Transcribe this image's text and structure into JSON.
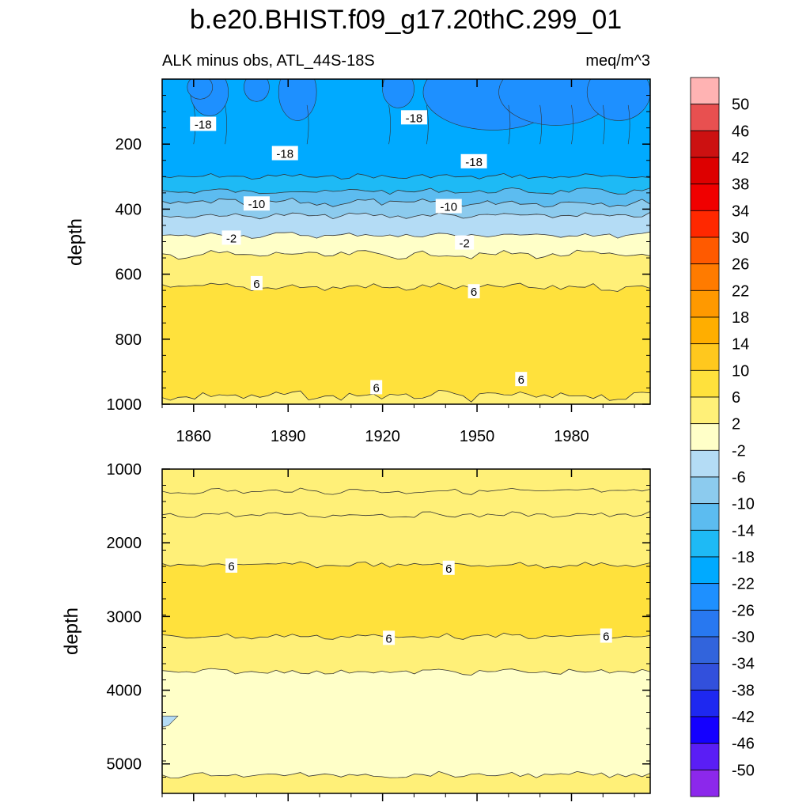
{
  "title": "b.e20.BHIST.f09_g17.20thC.299_01",
  "subtitle_left": "ALK minus obs, ATL_44S-18S",
  "subtitle_right": "meq/m^3",
  "chart_data": [
    {
      "type": "contour",
      "panel": "upper",
      "ylabel": "depth",
      "xlim": [
        1850,
        2005
      ],
      "ylim": [
        1000,
        0
      ],
      "y_ticks": [
        200,
        400,
        600,
        800,
        1000
      ],
      "x_ticks": [
        1860,
        1890,
        1920,
        1950,
        1980
      ],
      "contour_levels_depth": [
        {
          "value": -18,
          "depth": 300
        },
        {
          "value": -14,
          "depth": 345
        },
        {
          "value": -10,
          "depth": 380
        },
        {
          "value": -6,
          "depth": 420
        },
        {
          "value": -2,
          "depth": 480
        },
        {
          "value": 2,
          "depth": 540
        },
        {
          "value": 6,
          "depth": 640
        },
        {
          "value": 10,
          "depth": 975
        }
      ],
      "contour_labels": [
        {
          "text": "-18",
          "x": 1863,
          "depth": 140
        },
        {
          "text": "-18",
          "x": 1889,
          "depth": 230
        },
        {
          "text": "-18",
          "x": 1930,
          "depth": 120
        },
        {
          "text": "-18",
          "x": 1949,
          "depth": 255
        },
        {
          "text": "-10",
          "x": 1880,
          "depth": 385
        },
        {
          "text": "-10",
          "x": 1941,
          "depth": 393
        },
        {
          "text": "-2",
          "x": 1872,
          "depth": 490
        },
        {
          "text": "-2",
          "x": 1946,
          "depth": 505
        },
        {
          "text": "6",
          "x": 1880,
          "depth": 630
        },
        {
          "text": "6",
          "x": 1949,
          "depth": 655
        },
        {
          "text": "6",
          "x": 1918,
          "depth": 950
        },
        {
          "text": "6",
          "x": 1964,
          "depth": 925
        }
      ]
    },
    {
      "type": "contour",
      "panel": "lower",
      "ylabel": "depth",
      "xlim": [
        1850,
        2005
      ],
      "ylim": [
        5400,
        1000
      ],
      "y_ticks": [
        1000,
        2000,
        3000,
        4000,
        5000
      ],
      "contour_levels_depth": [
        {
          "value": 6,
          "depth": 2300
        },
        {
          "value": 10,
          "depth": 3270
        }
      ],
      "contour_labels": [
        {
          "text": "6",
          "x": 1872,
          "depth": 2320
        },
        {
          "text": "6",
          "x": 1941,
          "depth": 2350
        },
        {
          "text": "6",
          "x": 1922,
          "depth": 3300
        },
        {
          "text": "6",
          "x": 1991,
          "depth": 3270
        }
      ]
    }
  ],
  "colorbar": {
    "labels": [
      "50",
      "46",
      "42",
      "38",
      "34",
      "30",
      "26",
      "22",
      "18",
      "14",
      "10",
      "6",
      "2",
      "-2",
      "-6",
      "-10",
      "-14",
      "-18",
      "-22",
      "-26",
      "-30",
      "-34",
      "-38",
      "-42",
      "-46",
      "-50"
    ],
    "colors": [
      "#ffb3b3",
      "#e85050",
      "#cc1111",
      "#dd0000",
      "#f00000",
      "#ff2800",
      "#ff5a00",
      "#ff7b00",
      "#ff9900",
      "#ffae00",
      "#ffc81e",
      "#ffe13c",
      "#fff078",
      "#ffffc8",
      "#b4dcf5",
      "#8ccbee",
      "#5cbcf0",
      "#1ebaf5",
      "#00aaff",
      "#1e90ff",
      "#2878f0",
      "#3264dc",
      "#3250dc",
      "#1e28f0",
      "#1400ff",
      "#5a1ef5",
      "#8c28eb"
    ]
  }
}
